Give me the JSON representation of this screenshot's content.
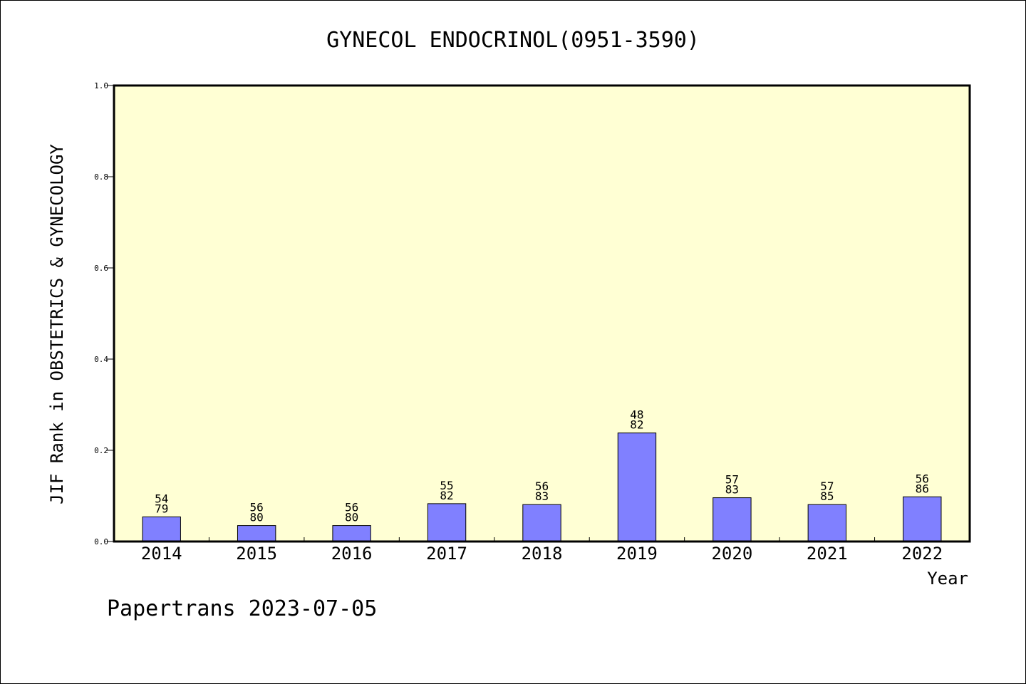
{
  "chart_data": {
    "type": "bar",
    "title": "GYNECOL ENDOCRINOL(0951-3590)",
    "xlabel": "Year",
    "ylabel": "JIF Rank in OBSTETRICS & GYNECOLOGY",
    "ylim": [
      0,
      1.0
    ],
    "yticks": [
      "0.0",
      "0.2",
      "0.4",
      "0.6",
      "0.8",
      "1.0"
    ],
    "grid": false,
    "categories": [
      "2014",
      "2015",
      "2016",
      "2017",
      "2018",
      "2019",
      "2020",
      "2021",
      "2022"
    ],
    "values": [
      0.054,
      0.035,
      0.035,
      0.083,
      0.081,
      0.238,
      0.096,
      0.081,
      0.098
    ],
    "ranks": [
      "54",
      "56",
      "56",
      "55",
      "56",
      "48",
      "57",
      "57",
      "56"
    ],
    "totals": [
      "79",
      "80",
      "80",
      "82",
      "83",
      "82",
      "83",
      "85",
      "86"
    ],
    "colors": {
      "plot_background": "#ffffd4",
      "bar_fill": "#8080ff",
      "bar_stroke": "#000000",
      "axis": "#000000"
    }
  },
  "footer": {
    "credit": "Papertrans 2023-07-05"
  }
}
